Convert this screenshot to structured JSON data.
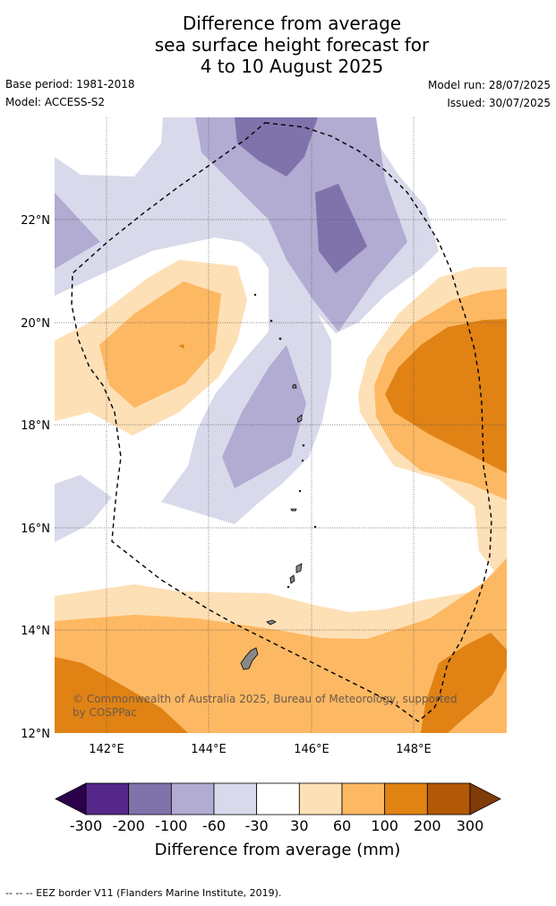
{
  "title_lines": [
    "Difference from average",
    "sea surface height forecast for",
    "4 to 10 August 2025"
  ],
  "base_period": "Base period: 1981-2018",
  "model": "Model: ACCESS-S2",
  "model_run": "Model run: 28/07/2025",
  "issued": "Issued: 30/07/2025",
  "copyright_lines": [
    "© Commonwealth of Australia 2025, Bureau of Meteorology, supported",
    "by COSPPac"
  ],
  "lon_ticks": [
    "142°E",
    "144°E",
    "146°E",
    "148°E"
  ],
  "lat_ticks": [
    "22°N",
    "20°N",
    "18°N",
    "16°N",
    "14°N",
    "12°N"
  ],
  "colorbar": {
    "title": "Difference from average (mm)",
    "tick_labels": [
      "-300",
      "-200",
      "-100",
      "-60",
      "-30",
      "30",
      "60",
      "100",
      "200",
      "300"
    ],
    "colors": [
      "#2d004b",
      "#542788",
      "#8073ac",
      "#b2abd2",
      "#d8daeb",
      "#ffffff",
      "#fee0b6",
      "#fdb863",
      "#e08214",
      "#b35806",
      "#7f3b08"
    ]
  },
  "footer": "--  --  -- EEZ border V11 (Flanders Marine Institute, 2019)."
}
